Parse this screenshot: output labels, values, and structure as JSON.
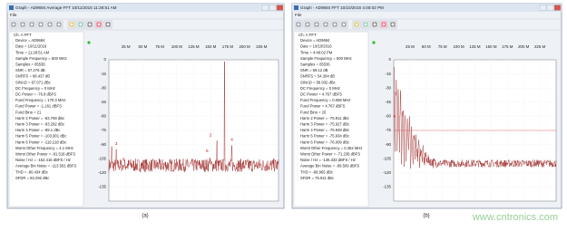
{
  "windows": [
    {
      "title": "Graph - AD9684 Average FFT 10/11/2016 11:28:51 AM",
      "menu": "File",
      "panel_header": "Ch. A FFT",
      "fields": [
        "Device = AD9684",
        "Date = 10/11/2016",
        "Time = 11:28:51 AM",
        "Sample Frequency = 500 MHz",
        "Samples = 65536",
        "SNR = 67.276 dB",
        "SNRFS = 68.437 dB",
        "SINAD = 67.071 dBc",
        "DC Frequency = 0 MHz",
        "DC Power = -76.8 dBFS",
        "Fund Frequency = 170.3 MHz",
        "Fund Power = -1.161 dBFS",
        "Fund Bins = 21",
        "Harm 2 Power = -83.769 dBc",
        "Harm 3 Power = -93.292 dBc",
        "Harm 4 Power = -89.1 dBc",
        "Harm 5 Power = -103.901 dBc",
        "Harm 6 Power = -119.218 dBc",
        "Worst Other Frequency = 4.1 MHz",
        "Worst Other Power = -91.518 dBFS",
        "Noise / Hz = -152.416 dBFS / Hz",
        "Average Bin Noise = -113.591 dBFS",
        "THD = -80.434 dBc",
        "SFDR = 83.292 dBc"
      ],
      "plot": {
        "xticks": [
          "25 M",
          "50 M",
          "75 M",
          "100 M",
          "125 M",
          "150 M",
          "175 M",
          "200 M",
          "225 M"
        ],
        "yticks": [
          0,
          -15,
          -30,
          -45,
          -60,
          -75,
          -90,
          -105,
          -120,
          -135
        ],
        "annotations": [
          "3",
          "6",
          "2",
          "5",
          "4"
        ]
      }
    },
    {
      "title": "Graph - AD9684 FFT 10/10/2016 4:48:02 PM",
      "menu": "File",
      "panel_header": "Ch. A FFT",
      "fields": [
        "Device = AD9684",
        "Date = 10/10/2016",
        "Time = 4:48:02 PM",
        "Sample Frequency = 500 MHz",
        "Samples = 65536",
        "SNR = 59.12 dB",
        "SNRFS = 54.394 dB",
        "SINAD = 58.932 dBc",
        "DC Frequency = 0 MHz",
        "DC Power = 4.767 dBFS",
        "Fund Frequency = 0.068 MHz",
        "Fund Power = 4.767 dBFS",
        "Fund Bins = 20",
        "Harm 2 Power = -75.911 dBc",
        "Harm 3 Power = -75.927 dBc",
        "Harm 4 Power = -75.949 dBc",
        "Harm 5 Power = -75.934 dBc",
        "Harm 6 Power = -76.009 dBc",
        "Worst Other Frequency = 0.452 MHz",
        "Worst Other Power = -71.236 dBFS",
        "Noise / Hz = -136.333 dBFS / Hz",
        "Average Bin Noise = -99.509 dBFS",
        "THD = -68.965 dBc",
        "SFDR = 75.911 dBc"
      ],
      "plot": {
        "xticks": [
          "25 M",
          "50 M",
          "75 M",
          "100 M",
          "125 M",
          "150 M",
          "175 M",
          "200 M",
          "225 M"
        ],
        "yticks": [
          0,
          -15,
          -30,
          -45,
          -60,
          -75,
          -90,
          -105,
          -120,
          -135
        ],
        "annotations": []
      }
    }
  ],
  "captions": [
    "(a)",
    "(b)"
  ],
  "watermark": "www.cntronics.com"
}
